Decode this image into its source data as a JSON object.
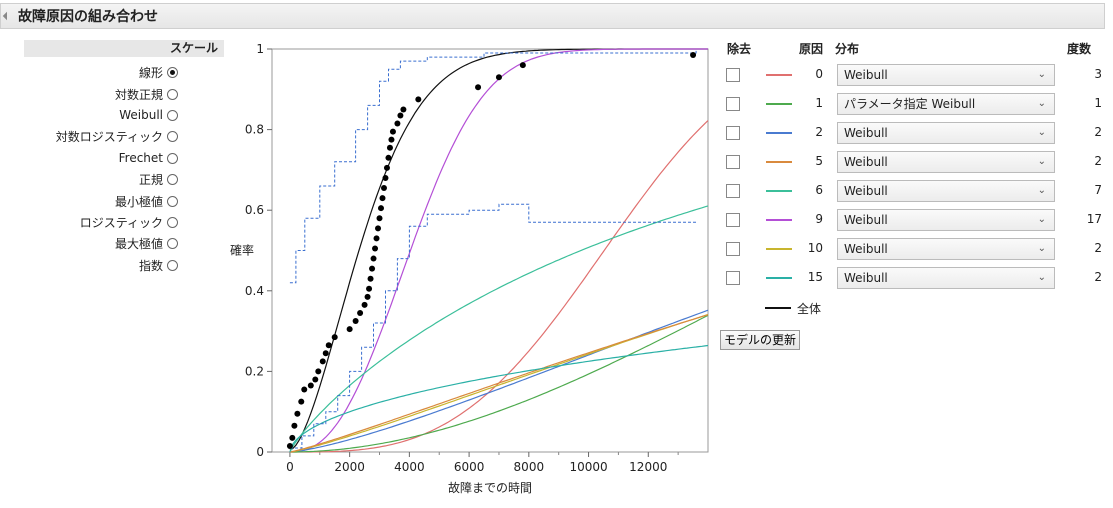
{
  "header": {
    "title": "故障原因の組み合わせ"
  },
  "scale": {
    "heading": "スケール",
    "options": [
      "線形",
      "対数正規",
      "Weibull",
      "対数ロジスティック",
      "Frechet",
      "正規",
      "最小極値",
      "ロジスティック",
      "最大極値",
      "指数"
    ],
    "selected": "線形"
  },
  "table": {
    "col_remove": "除去",
    "col_cause": "原因",
    "col_dist": "分布",
    "col_freq": "度数",
    "rows": [
      {
        "cause": "0",
        "dist": "Weibull",
        "freq": "3",
        "color": "#e0706f"
      },
      {
        "cause": "1",
        "dist": "パラメータ指定 Weibull",
        "freq": "1",
        "color": "#4eaa4e"
      },
      {
        "cause": "2",
        "dist": "Weibull",
        "freq": "2",
        "color": "#4a7bd0"
      },
      {
        "cause": "5",
        "dist": "Weibull",
        "freq": "2",
        "color": "#d98a3d"
      },
      {
        "cause": "6",
        "dist": "Weibull",
        "freq": "7",
        "color": "#3bbf9a"
      },
      {
        "cause": "9",
        "dist": "Weibull",
        "freq": "17",
        "color": "#b44fd6"
      },
      {
        "cause": "10",
        "dist": "Weibull",
        "freq": "2",
        "color": "#c8b52e"
      },
      {
        "cause": "15",
        "dist": "Weibull",
        "freq": "2",
        "color": "#2ab0a6"
      }
    ],
    "overall_label": "全体",
    "overall_color": "#111111"
  },
  "update_button": "モデルの更新",
  "chart_data": {
    "type": "line",
    "xlabel": "故障までの時間",
    "ylabel": "確率",
    "xlim": [
      -600,
      14000
    ],
    "ylim": [
      0,
      1
    ],
    "xticks": [
      "0",
      "2000",
      "4000",
      "6000",
      "8000",
      "10000",
      "12000"
    ],
    "yticks": [
      "0",
      "0.2",
      "0.4",
      "0.6",
      "0.8",
      "1"
    ],
    "points": [
      [
        0,
        0.015
      ],
      [
        80,
        0.035
      ],
      [
        150,
        0.065
      ],
      [
        250,
        0.095
      ],
      [
        380,
        0.125
      ],
      [
        480,
        0.155
      ],
      [
        700,
        0.165
      ],
      [
        850,
        0.18
      ],
      [
        950,
        0.2
      ],
      [
        1100,
        0.225
      ],
      [
        1200,
        0.245
      ],
      [
        1300,
        0.265
      ],
      [
        1500,
        0.285
      ],
      [
        2000,
        0.305
      ],
      [
        2200,
        0.325
      ],
      [
        2350,
        0.345
      ],
      [
        2500,
        0.365
      ],
      [
        2600,
        0.385
      ],
      [
        2650,
        0.405
      ],
      [
        2700,
        0.43
      ],
      [
        2750,
        0.455
      ],
      [
        2800,
        0.48
      ],
      [
        2850,
        0.505
      ],
      [
        2900,
        0.53
      ],
      [
        2950,
        0.555
      ],
      [
        3000,
        0.58
      ],
      [
        3050,
        0.605
      ],
      [
        3100,
        0.63
      ],
      [
        3150,
        0.655
      ],
      [
        3200,
        0.68
      ],
      [
        3250,
        0.705
      ],
      [
        3300,
        0.73
      ],
      [
        3350,
        0.755
      ],
      [
        3400,
        0.775
      ],
      [
        3450,
        0.795
      ],
      [
        3600,
        0.815
      ],
      [
        3700,
        0.835
      ],
      [
        3800,
        0.85
      ],
      [
        4300,
        0.875
      ],
      [
        6300,
        0.905
      ],
      [
        7000,
        0.93
      ],
      [
        7800,
        0.96
      ],
      [
        13500,
        0.985
      ]
    ],
    "series": [
      {
        "cause": "全体",
        "color": "#111111"
      },
      {
        "cause": "9",
        "color": "#b44fd6"
      },
      {
        "cause": "0",
        "color": "#e0706f"
      },
      {
        "cause": "6",
        "color": "#3bbf9a"
      },
      {
        "cause": "2",
        "color": "#4a7bd0"
      },
      {
        "cause": "1",
        "color": "#4eaa4e"
      },
      {
        "cause": "10",
        "color": "#c8b52e"
      },
      {
        "cause": "5",
        "color": "#d98a3d"
      },
      {
        "cause": "15",
        "color": "#2ab0a6"
      }
    ]
  }
}
